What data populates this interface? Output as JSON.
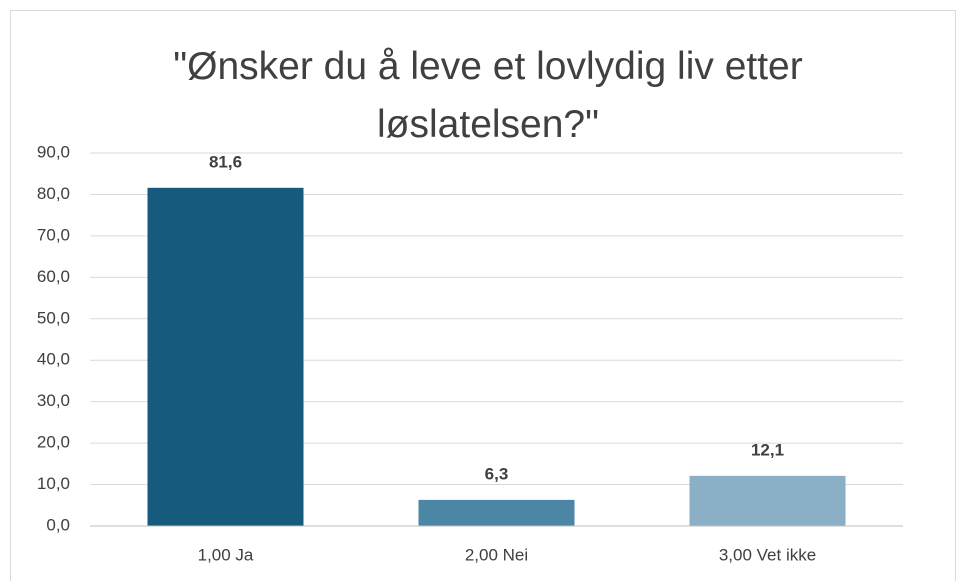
{
  "chart_data": {
    "type": "bar",
    "title": "\"Ønsker du å leve et lovlydig liv etter løslatelsen?\"",
    "categories": [
      "1,00 Ja",
      "2,00 Nei",
      "3,00 Vet ikke"
    ],
    "values": [
      81.6,
      6.3,
      12.1
    ],
    "value_labels": [
      "81,6",
      "6,3",
      "12,1"
    ],
    "colors": [
      "#165b7e",
      "#4b86a4",
      "#8aafc6"
    ],
    "ylim": [
      0,
      90
    ],
    "yticks": [
      {
        "value": 0,
        "label": "0,0"
      },
      {
        "value": 10,
        "label": "10,0"
      },
      {
        "value": 20,
        "label": "20,0"
      },
      {
        "value": 30,
        "label": "30,0"
      },
      {
        "value": 40,
        "label": "40,0"
      },
      {
        "value": 50,
        "label": "50,0"
      },
      {
        "value": 60,
        "label": "60,0"
      },
      {
        "value": 70,
        "label": "70,0"
      },
      {
        "value": 80,
        "label": "80,0"
      },
      {
        "value": 90,
        "label": "90,0"
      }
    ],
    "grid": true
  }
}
